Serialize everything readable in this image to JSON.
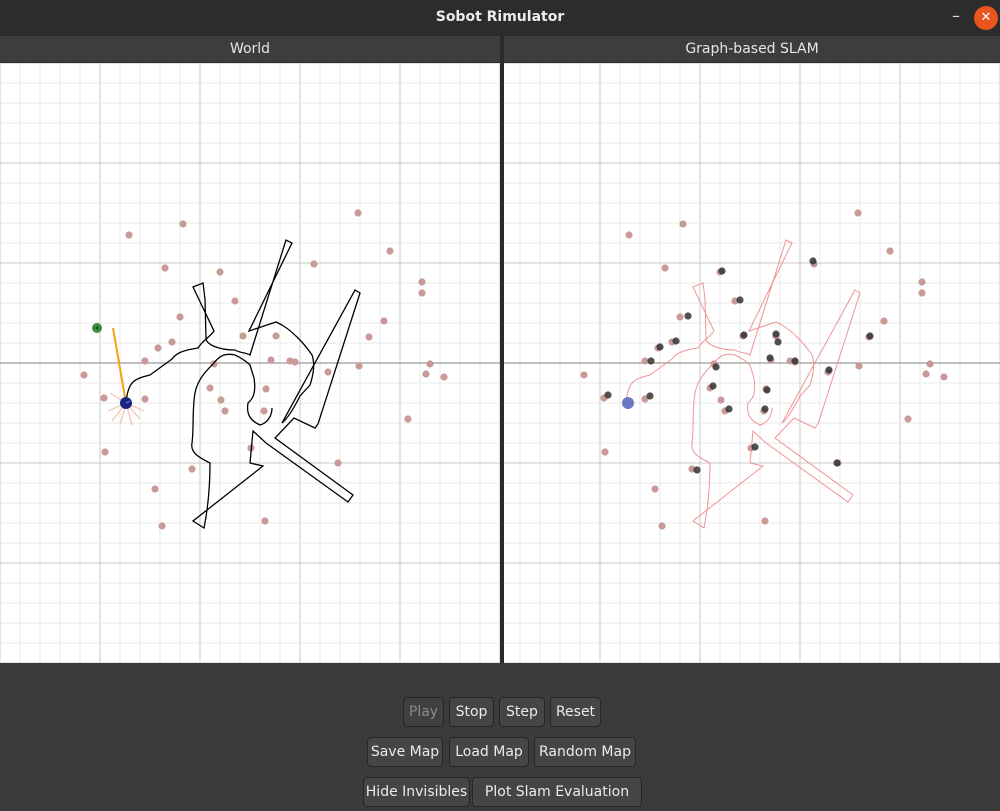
{
  "window": {
    "title": "Sobot Rimulator",
    "minimize_glyph": "–",
    "close_glyph": "✕"
  },
  "panels": {
    "world": {
      "title": "World"
    },
    "slam": {
      "title": "Graph-based SLAM"
    }
  },
  "controls": {
    "play": {
      "label": "Play",
      "enabled": false
    },
    "stop": {
      "label": "Stop"
    },
    "step": {
      "label": "Step"
    },
    "reset": {
      "label": "Reset"
    },
    "save_map": {
      "label": "Save Map"
    },
    "load_map": {
      "label": "Load Map"
    },
    "random_map": {
      "label": "Random Map"
    },
    "hide_invisibles": {
      "label": "Hide Invisibles"
    },
    "plot_slam_evaluation": {
      "label": "Plot Slam Evaluation"
    }
  },
  "colors": {
    "accent_close": "#e95420",
    "landmark": "#c99a98",
    "trajectory_true": "#000000",
    "trajectory_estimated": "#ee8888",
    "robot": "#1a237e",
    "robot_estimate": "#5c6bc0",
    "goal": "#3a8f3a",
    "heading": "#f2a20c",
    "slam_estimate": "#333333"
  },
  "icons": {
    "goal": "goal-marker-icon",
    "robot": "robot-icon"
  }
}
